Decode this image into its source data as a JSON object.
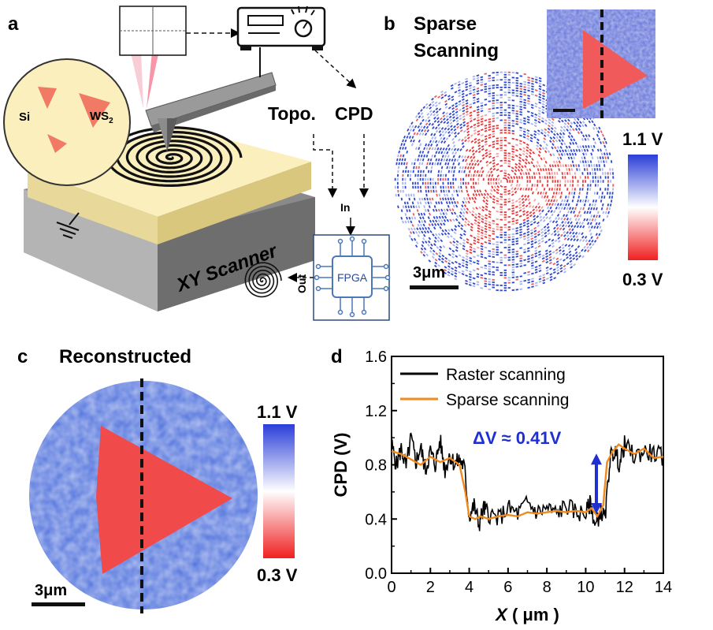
{
  "panel_a": {
    "letter": "a",
    "si_label": "Si",
    "ws_label": "WS",
    "ws_sub": "2",
    "topo_label": "Topo.",
    "cpd_label": "CPD",
    "in_label": "In",
    "out_label": "Out",
    "fpga_label": "FPGA",
    "scanner_label": "XY Scanner"
  },
  "panel_b": {
    "letter": "b",
    "title_line1": "Sparse",
    "title_line2": "Scanning",
    "cbar_max": "1.1 V",
    "cbar_min": "0.3 V",
    "scale_label": "3μm"
  },
  "panel_c": {
    "letter": "c",
    "title": "Reconstructed",
    "cbar_max": "1.1 V",
    "cbar_min": "0.3 V",
    "scale_label": "3μm"
  },
  "colors": {
    "map_blue": "#3c5ed8",
    "map_red": "#f03c3c",
    "sample_yellow": "#fbefbe",
    "raster_line": "#000000",
    "sparse_line": "#f08a1c",
    "annotation_blue": "#1f2fd0"
  },
  "chart_data": {
    "type": "line",
    "letter": "d",
    "xlabel_var": "X",
    "xlabel_unit": "( μm )",
    "ylabel": "CPD (V)",
    "xlim": [
      0,
      14
    ],
    "ylim": [
      0.0,
      1.6
    ],
    "xticks": [
      "0",
      "2",
      "4",
      "6",
      "8",
      "10",
      "12",
      "14"
    ],
    "yticks": [
      "0.0",
      "0.4",
      "0.8",
      "1.2",
      "1.6"
    ],
    "annotation": "ΔV ≈ 0.41V",
    "series": [
      {
        "name": "Raster scanning",
        "color": "#000000",
        "x": [
          0,
          0.25,
          0.5,
          0.75,
          1,
          1.25,
          1.5,
          1.75,
          2,
          2.25,
          2.5,
          2.75,
          3,
          3.25,
          3.5,
          3.75,
          4,
          4.25,
          4.5,
          4.75,
          5,
          5.5,
          6,
          6.5,
          7,
          7.5,
          8,
          8.5,
          9,
          9.5,
          10,
          10.25,
          10.5,
          10.75,
          11,
          11.25,
          11.5,
          11.75,
          12,
          12.5,
          13,
          13.5,
          14
        ],
        "y": [
          0.95,
          0.8,
          0.92,
          0.78,
          1.0,
          0.82,
          0.93,
          0.76,
          0.9,
          0.8,
          0.98,
          0.76,
          0.88,
          0.8,
          0.84,
          0.78,
          0.42,
          0.5,
          0.36,
          0.48,
          0.44,
          0.4,
          0.48,
          0.44,
          0.52,
          0.45,
          0.48,
          0.44,
          0.5,
          0.45,
          0.44,
          0.52,
          0.34,
          0.46,
          0.4,
          0.85,
          0.9,
          0.8,
          0.95,
          0.86,
          0.9,
          0.88,
          0.86
        ]
      },
      {
        "name": "Sparse scanning",
        "color": "#f08a1c",
        "x": [
          0,
          0.5,
          1,
          1.5,
          2,
          2.5,
          3,
          3.5,
          3.8,
          4,
          4.3,
          4.6,
          5,
          5.5,
          6,
          6.5,
          7,
          7.5,
          8,
          8.5,
          9,
          9.5,
          10,
          10.3,
          10.6,
          10.9,
          11.1,
          11.4,
          11.7,
          12,
          12.5,
          13,
          13.5,
          14
        ],
        "y": [
          0.9,
          0.88,
          0.84,
          0.8,
          0.86,
          0.82,
          0.85,
          0.8,
          0.6,
          0.42,
          0.4,
          0.42,
          0.4,
          0.42,
          0.43,
          0.42,
          0.45,
          0.44,
          0.45,
          0.46,
          0.45,
          0.46,
          0.45,
          0.48,
          0.42,
          0.5,
          0.82,
          0.9,
          0.95,
          0.92,
          0.88,
          0.92,
          0.85,
          0.86
        ]
      }
    ]
  }
}
